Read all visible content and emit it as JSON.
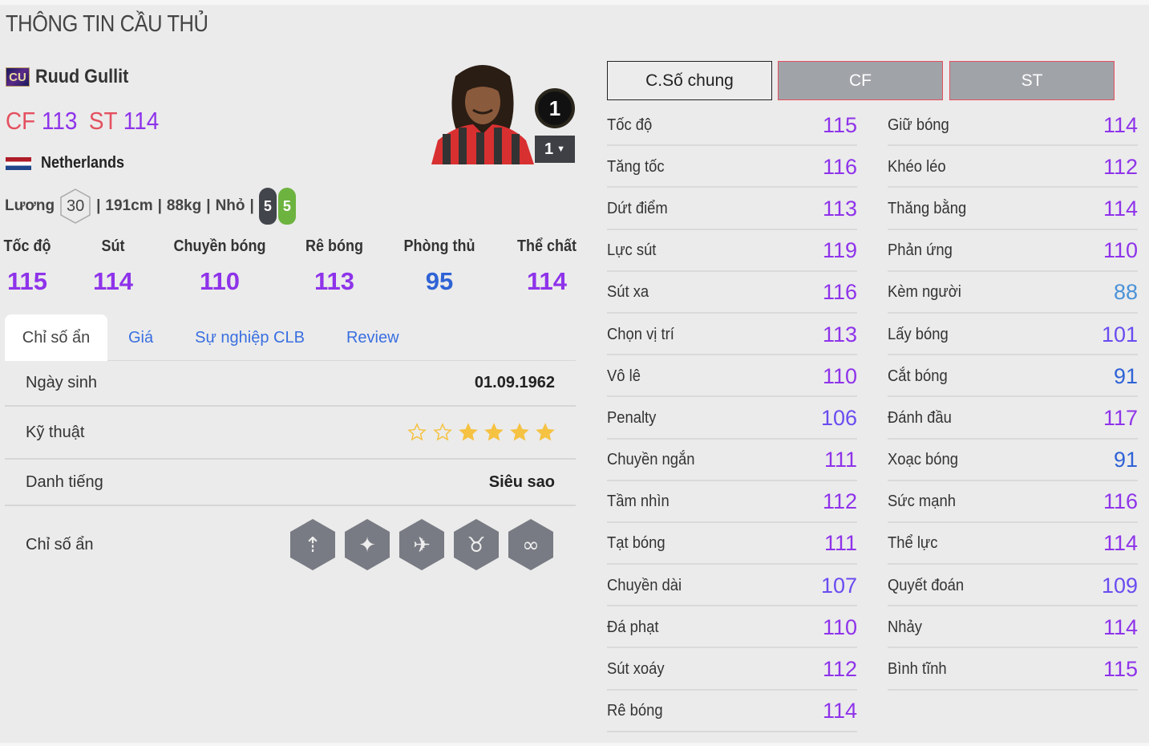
{
  "page_title": "THÔNG TIN CẦU THỦ",
  "player": {
    "season_badge": "CU",
    "name": "Ruud Gullit",
    "positions": [
      {
        "pos": "CF",
        "ovr": "113"
      },
      {
        "pos": "ST",
        "ovr": "114"
      }
    ],
    "nation": "Netherlands",
    "salary_label": "Lương",
    "salary": "30",
    "height": "191cm",
    "weight": "88kg",
    "body": "Nhỏ",
    "left_foot": "5",
    "right_foot": "5",
    "badge_number": "1",
    "level": "1"
  },
  "summary": [
    {
      "label": "Tốc độ",
      "value": 115
    },
    {
      "label": "Sút",
      "value": 114
    },
    {
      "label": "Chuyền bóng",
      "value": 110
    },
    {
      "label": "Rê bóng",
      "value": 113
    },
    {
      "label": "Phòng thủ",
      "value": 95
    },
    {
      "label": "Thể chất",
      "value": 114
    }
  ],
  "tabs": [
    "Chỉ số ẩn",
    "Giá",
    "Sự nghiệp CLB",
    "Review"
  ],
  "details": {
    "birth_label": "Ngày sinh",
    "birth": "01.09.1962",
    "skill_label": "Kỹ thuật",
    "skill_stars": 4,
    "skill_max": 6,
    "rep_label": "Danh tiếng",
    "rep": "Siêu sao",
    "traits_label": "Chỉ số ẩn",
    "traits": [
      "long-shot-icon",
      "speed-dribbler-icon",
      "finesse-shot-icon",
      "bull-power-icon",
      "playmaker-icon"
    ]
  },
  "position_tabs": [
    "C.Số chung",
    "CF",
    "ST"
  ],
  "stats_left": [
    {
      "label": "Tốc độ",
      "value": 115
    },
    {
      "label": "Tăng tốc",
      "value": 116
    },
    {
      "label": "Dứt điểm",
      "value": 113
    },
    {
      "label": "Lực sút",
      "value": 119
    },
    {
      "label": "Sút xa",
      "value": 116
    },
    {
      "label": "Chọn vị trí",
      "value": 113
    },
    {
      "label": "Vô lê",
      "value": 110
    },
    {
      "label": "Penalty",
      "value": 106
    },
    {
      "label": "Chuyền ngắn",
      "value": 111
    },
    {
      "label": "Tầm nhìn",
      "value": 112
    },
    {
      "label": "Tạt bóng",
      "value": 111
    },
    {
      "label": "Chuyền dài",
      "value": 107
    },
    {
      "label": "Đá phạt",
      "value": 110
    },
    {
      "label": "Sút xoáy",
      "value": 112
    },
    {
      "label": "Rê bóng",
      "value": 114
    }
  ],
  "stats_right": [
    {
      "label": "Giữ bóng",
      "value": 114
    },
    {
      "label": "Khéo léo",
      "value": 112
    },
    {
      "label": "Thăng bằng",
      "value": 114
    },
    {
      "label": "Phản ứng",
      "value": 110
    },
    {
      "label": "Kèm người",
      "value": 88
    },
    {
      "label": "Lấy bóng",
      "value": 101
    },
    {
      "label": "Cắt bóng",
      "value": 91
    },
    {
      "label": "Đánh đầu",
      "value": 117
    },
    {
      "label": "Xoạc bóng",
      "value": 91
    },
    {
      "label": "Sức mạnh",
      "value": 116
    },
    {
      "label": "Thể lực",
      "value": 114
    },
    {
      "label": "Quyết đoán",
      "value": 109
    },
    {
      "label": "Nhảy",
      "value": 114
    },
    {
      "label": "Bình tĩnh",
      "value": 115
    }
  ],
  "colors": {
    "tier_110": "#8e33ea",
    "tier_100": "#6a4cf0",
    "tier_90": "#2f63d6",
    "tier_80": "#4a92d8",
    "position": "#e4505f",
    "star": "#f5c242",
    "trait_bg": "#787b83"
  }
}
